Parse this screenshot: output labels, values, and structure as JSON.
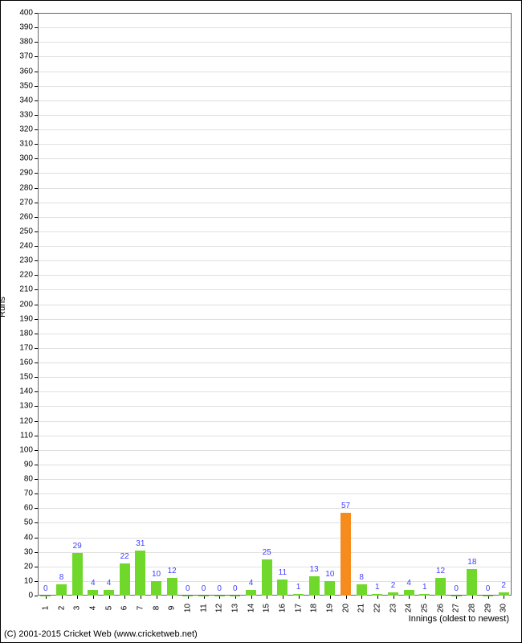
{
  "chart": {
    "type": "bar",
    "ylabel": "Runs",
    "xlabel": "Innings (oldest to newest)",
    "ylim": [
      0,
      400
    ],
    "ytick_step": 10,
    "background_color": "#ffffff",
    "grid_color": "#e0e0e0",
    "border_color": "#666666",
    "axis_label_fontsize": 11,
    "tick_label_fontsize": 10,
    "bar_label_fontsize": 10,
    "bar_label_color": "#3f3fff",
    "default_bar_color": "#6fd82a",
    "highlight_bar_color": "#f58c1d",
    "bar_width": 0.65,
    "categories": [
      "1",
      "2",
      "3",
      "4",
      "5",
      "6",
      "7",
      "8",
      "9",
      "10",
      "11",
      "12",
      "13",
      "14",
      "15",
      "16",
      "17",
      "18",
      "19",
      "20",
      "21",
      "22",
      "23",
      "24",
      "25",
      "26",
      "27",
      "28",
      "29",
      "30"
    ],
    "values": [
      0,
      8,
      29,
      4,
      4,
      22,
      31,
      10,
      12,
      0,
      0,
      0,
      0,
      4,
      25,
      11,
      1,
      13,
      10,
      57,
      8,
      1,
      2,
      4,
      1,
      12,
      0,
      18,
      0,
      2
    ],
    "highlighted_index": 19
  },
  "footer": "(C) 2001-2015 Cricket Web (www.cricketweb.net)"
}
